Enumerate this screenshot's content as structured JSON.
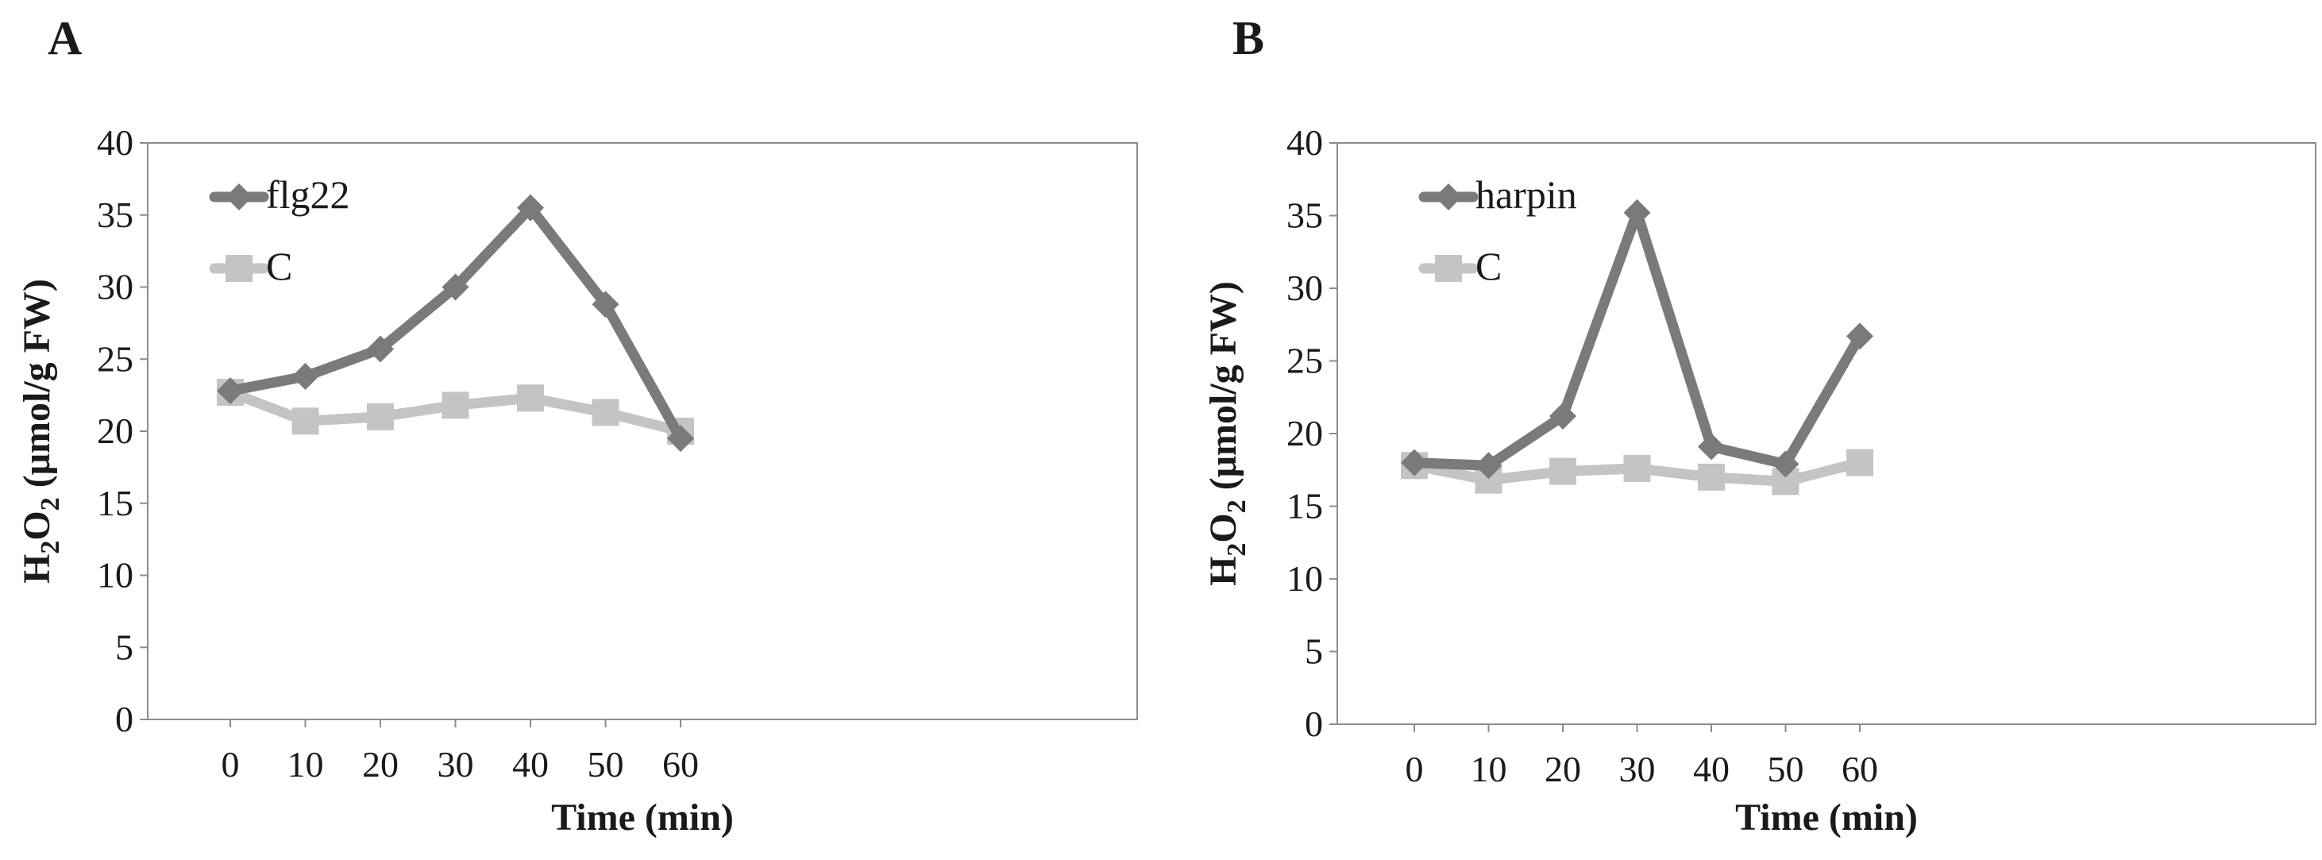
{
  "chart_data": [
    {
      "panel": "A",
      "type": "line",
      "xlabel": "Time (min)",
      "ylabel_parts": {
        "h": "H",
        "sub1": "2",
        "o": "O",
        "sub2": "2",
        "rest": " (μmol/g FW)"
      },
      "ylim": [
        0,
        40
      ],
      "yticks": [
        0,
        5,
        10,
        15,
        20,
        25,
        30,
        35,
        40
      ],
      "x": [
        0,
        10,
        20,
        30,
        40,
        50,
        60
      ],
      "legend_position": "top-left",
      "series": [
        {
          "name": "flg22",
          "marker": "diamond",
          "color": "#7a7a7a",
          "values": [
            22.8,
            23.8,
            25.7,
            30.0,
            35.5,
            28.8,
            19.5
          ]
        },
        {
          "name": "C",
          "marker": "square",
          "color": "#c4c4c4",
          "values": [
            22.7,
            20.7,
            21.0,
            21.8,
            22.3,
            21.3,
            20.0
          ]
        }
      ]
    },
    {
      "panel": "B",
      "type": "line",
      "xlabel": "Time (min)",
      "ylabel_parts": {
        "h": "H",
        "sub1": "2",
        "o": "O",
        "sub2": "2",
        "rest": " (μmol/g FW)"
      },
      "ylim": [
        0,
        40
      ],
      "yticks": [
        0,
        5,
        10,
        15,
        20,
        25,
        30,
        35,
        40
      ],
      "x": [
        0,
        10,
        20,
        30,
        40,
        50,
        60
      ],
      "legend_position": "top-left",
      "series": [
        {
          "name": "harpin",
          "marker": "diamond",
          "color": "#7a7a7a",
          "values": [
            18.0,
            17.8,
            21.2,
            35.2,
            19.1,
            17.9,
            26.7
          ]
        },
        {
          "name": "C",
          "marker": "square",
          "color": "#c4c4c4",
          "values": [
            17.8,
            16.8,
            17.4,
            17.6,
            17.0,
            16.7,
            18.0
          ]
        }
      ]
    }
  ]
}
